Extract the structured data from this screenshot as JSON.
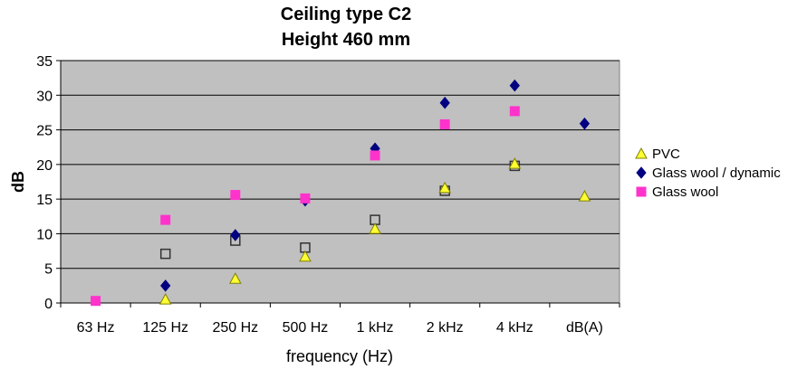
{
  "chart_data": {
    "type": "scatter",
    "title_lines": [
      "Ceiling type C2",
      "Height 460 mm"
    ],
    "xlabel": "frequency (Hz)",
    "ylabel": "dB",
    "categories": [
      "63 Hz",
      "125 Hz",
      "250 Hz",
      "500 Hz",
      "1 kHz",
      "2 kHz",
      "4 kHz",
      "dB(A)"
    ],
    "y_ticks": [
      "0",
      "5",
      "10",
      "15",
      "20",
      "25",
      "30",
      "35"
    ],
    "ylim": [
      0,
      35
    ],
    "grid": "horizontal",
    "plot_background": "#c0c0c0",
    "legend_position": "right",
    "series": [
      {
        "name": "PVC",
        "marker": "triangle",
        "color": "#ffff33",
        "values": [
          null,
          0.5,
          3.5,
          6.7,
          10.7,
          16.6,
          20.1,
          15.4
        ]
      },
      {
        "name": "Glass wool / dynamic",
        "marker": "diamond",
        "color": "#000080",
        "values": [
          null,
          2.5,
          9.8,
          14.8,
          22.3,
          28.9,
          31.4,
          25.9
        ]
      },
      {
        "name": "Glass wool",
        "marker": "square",
        "color": "#ff33cc",
        "values": [
          0.3,
          12.0,
          15.6,
          15.1,
          21.3,
          25.8,
          27.7,
          null
        ]
      },
      {
        "name": "",
        "marker": "square-open",
        "color": "#333333",
        "values": [
          null,
          7.1,
          9.0,
          8.0,
          12.0,
          16.2,
          19.8,
          null
        ]
      }
    ]
  }
}
